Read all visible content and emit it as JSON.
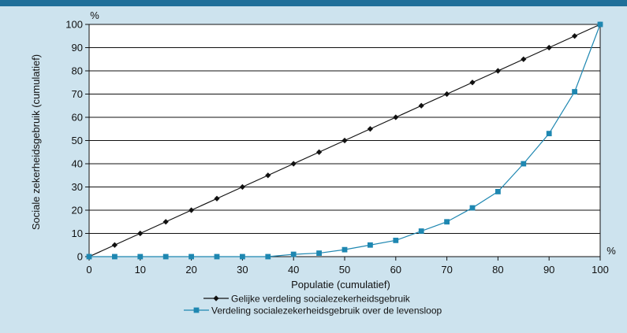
{
  "chart_data": {
    "type": "line",
    "x": [
      0,
      5,
      10,
      15,
      20,
      25,
      30,
      35,
      40,
      45,
      50,
      55,
      60,
      65,
      70,
      75,
      80,
      85,
      90,
      95,
      100
    ],
    "series": [
      {
        "name": "Gelijke verdeling socialezekerheidsgebruik",
        "color": "#111111",
        "marker": "diamond",
        "values": [
          0,
          5,
          10,
          15,
          20,
          25,
          30,
          35,
          40,
          45,
          50,
          55,
          60,
          65,
          70,
          75,
          80,
          85,
          90,
          95,
          100
        ]
      },
      {
        "name": "Verdeling socialezekerheidsgebruik over de levensloop",
        "color": "#1e87b1",
        "marker": "square",
        "values": [
          0,
          0,
          0,
          0,
          0,
          0,
          0,
          0,
          1,
          1.5,
          3,
          5,
          7,
          11,
          15,
          21,
          28,
          40,
          53,
          71,
          100
        ]
      }
    ],
    "xlabel": "Populatie (cumulatief)",
    "ylabel": "Sociale zekerheidsgebruik (cumulatief)",
    "xunit": "%",
    "yunit": "%",
    "xlim": [
      0,
      100
    ],
    "ylim": [
      0,
      100
    ],
    "xticks": [
      0,
      10,
      20,
      30,
      40,
      50,
      60,
      70,
      80,
      90,
      100
    ],
    "yticks": [
      0,
      10,
      20,
      30,
      40,
      50,
      60,
      70,
      80,
      90,
      100
    ],
    "grid": true,
    "legend_position": "bottom"
  }
}
